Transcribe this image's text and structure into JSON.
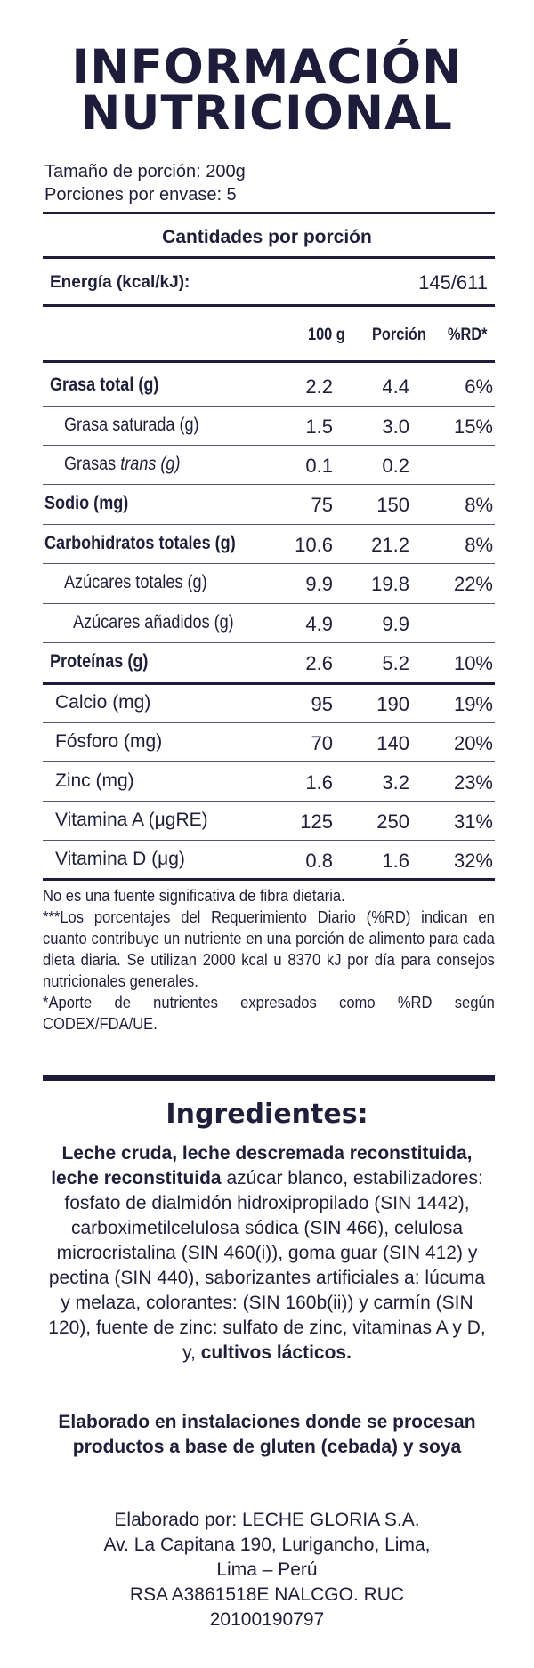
{
  "title_line1": "INFORMACIÓN",
  "title_line2": "NUTRICIONAL",
  "serving_size": "Tamaño de porción: 200g",
  "servings_per_container": "Porciones por envase: 5",
  "per_portion_heading": "Cantidades por porción",
  "energy": {
    "label": "Energía (kcal/kJ):",
    "value": "145/611"
  },
  "columns": {
    "per100": "100 g",
    "portion": "Porción",
    "rd": "%RD*"
  },
  "rows": [
    {
      "label": "Grasa total (g)",
      "per100": "2.2",
      "portion": "4.4",
      "rd": "6%"
    },
    {
      "label": "Grasa saturada (g)",
      "per100": "1.5",
      "portion": "3.0",
      "rd": "15%"
    },
    {
      "label_prefix": "Grasas ",
      "label_em": "trans (g)",
      "per100": "0.1",
      "portion": "0.2",
      "rd": ""
    },
    {
      "label": "Sodio (mg)",
      "per100": "75",
      "portion": "150",
      "rd": "8%"
    },
    {
      "label": "Carbohidratos totales (g)",
      "per100": "10.6",
      "portion": "21.2",
      "rd": "8%"
    },
    {
      "label": "Azúcares totales (g)",
      "per100": "9.9",
      "portion": "19.8",
      "rd": "22%"
    },
    {
      "label": "Azúcares añadidos (g)",
      "per100": "4.9",
      "portion": "9.9",
      "rd": ""
    },
    {
      "label": "Proteínas (g)",
      "per100": "2.6",
      "portion": "5.2",
      "rd": "10%"
    },
    {
      "label": "Calcio (mg)",
      "per100": "95",
      "portion": "190",
      "rd": "19%"
    },
    {
      "label": "Fósforo (mg)",
      "per100": "70",
      "portion": "140",
      "rd": "20%"
    },
    {
      "label": "Zinc (mg)",
      "per100": "1.6",
      "portion": "3.2",
      "rd": "23%"
    },
    {
      "label": "Vitamina A (μgRE)",
      "per100": "125",
      "portion": "250",
      "rd": "31%"
    },
    {
      "label": "Vitamina D (μg)",
      "per100": "0.8",
      "portion": "1.6",
      "rd": "32%"
    }
  ],
  "notes": {
    "fiber": "No es una fuente significativa de fibra dietaria.",
    "rd": "***Los porcentajes del Requerimiento Diario (%RD) indican en cuanto contribuye un nutriente en una porción de alimento para cada dieta diaria. Se utilizan 2000 kcal u 8370 kJ por día para consejos nutricionales generales.",
    "codex": "*Aporte de nutrientes expresados como %RD según CODEX/FDA/UE."
  },
  "ingredients": {
    "title": "Ingredientes:",
    "bold_start": "Leche cruda, leche descremada reconstituida, leche reconstituida",
    "body": " azúcar blanco, estabilizadores: fosfato de dialmidón hidroxipropilado (SIN 1442), carboximetilcelulosa sódica (SIN 466), celulosa microcristalina (SIN 460(i)), goma guar (SIN 412) y pectina (SIN 440), saborizantes artificiales a: lúcuma y melaza, colorantes: (SIN 160b(ii)) y carmín (SIN 120), fuente de zinc: sulfato de zinc, vitaminas A y D, y, ",
    "bold_end": "cultivos lácticos."
  },
  "allergen": "Elaborado en instalaciones donde se procesan productos a base de gluten (cebada) y soya",
  "maker": {
    "line1": "Elaborado por: LECHE GLORIA S.A.",
    "line2": "Av. La Capitana 190, Lurigancho, Lima,",
    "line3": "Lima – Perú",
    "line4": "RSA A3861518E NALCGO. RUC",
    "line5": "20100190797"
  }
}
